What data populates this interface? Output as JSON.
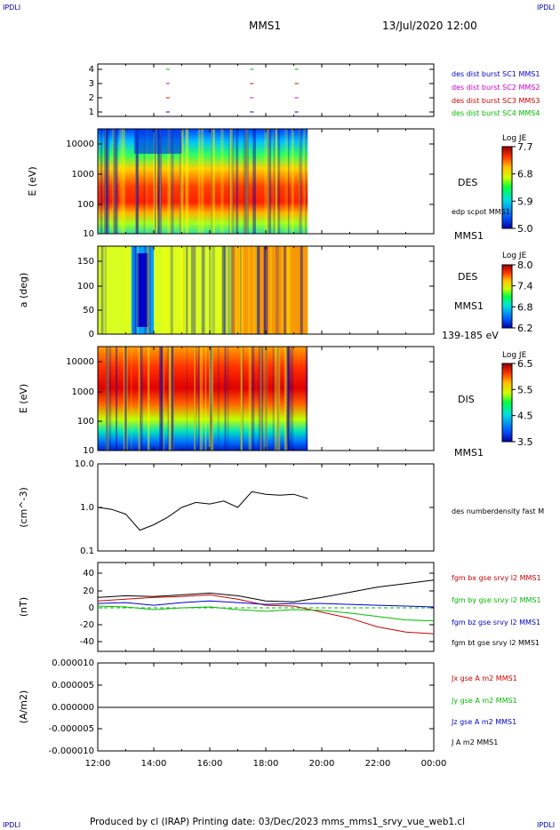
{
  "corner": {
    "tl": "IPDLI",
    "tr": "IPDLI",
    "bl": "IPDLI",
    "br": "IPDLI"
  },
  "header": {
    "spacecraft": "MMS1",
    "datetime": "13/Jul/2020 12:00"
  },
  "footer": {
    "text": "Produced by cl (IRAP)   Printing date: 03/Dec/2023   mms_mms1_srvy_vue_web1.cl"
  },
  "colors": {
    "c1": "#0000cc",
    "c2": "#cc00cc",
    "c3": "#cc0000",
    "c4": "#00bb00",
    "black": "#000000"
  },
  "x_axis": {
    "ticks": [
      "12:00",
      "14:00",
      "16:00",
      "18:00",
      "20:00",
      "22:00",
      "00:00"
    ]
  },
  "panel1": {
    "yticks": [
      "4",
      "3",
      "2",
      "1"
    ],
    "labels": [
      "des dist burst SC1 MMS1",
      "des dist burst SC2 MMS2",
      "des dist burst SC3 MMS3",
      "des dist burst SC4 MMS4"
    ]
  },
  "panel2": {
    "ylabel": "E (eV)",
    "yticks": [
      "10000",
      "1000",
      "100",
      "10"
    ],
    "name": "DES",
    "overlay": "edp scpot MMS1",
    "sc": "MMS1",
    "cb_title": "Log JE",
    "cb_ticks": [
      "7.7",
      "6.8",
      "5.9",
      "5.0"
    ]
  },
  "panel3": {
    "ylabel": "a (deg)",
    "yticks": [
      "150",
      "100",
      "50",
      "0"
    ],
    "name": "DES",
    "sc": "MMS1",
    "range": "139-185 eV",
    "cb_title": "Log JE",
    "cb_ticks": [
      "8.0",
      "7.4",
      "6.8",
      "6.2"
    ]
  },
  "panel4": {
    "ylabel": "E (eV)",
    "yticks": [
      "10000",
      "1000",
      "100",
      "10"
    ],
    "name": "DIS",
    "sc": "MMS1",
    "cb_title": "Log JE",
    "cb_ticks": [
      "6.5",
      "5.5",
      "4.5",
      "3.5"
    ]
  },
  "panel5": {
    "ylabel": "(cm^-3)",
    "yticks": [
      "10.0",
      "1.0",
      "0.1"
    ],
    "label": "des numberdensity fast M"
  },
  "panel6": {
    "ylabel": "(nT)",
    "yticks": [
      "40",
      "20",
      "0",
      "-20",
      "-40"
    ],
    "labels": [
      "fgm bx gse srvy l2 MMS1",
      "fgm by gse srvy l2 MMS1",
      "fgm bz gse srvy l2 MMS1",
      "fgm bt gse srvy l2 MMS1"
    ]
  },
  "panel7": {
    "ylabel": "(A/m2)",
    "yticks": [
      "0.000010",
      "0.000005",
      "0.000000",
      "-0.000005",
      "-0.000010"
    ],
    "labels": [
      "Jx gse A m2 MMS1",
      "Jy gse A m2 MMS1",
      "Jz gse A m2 MMS1",
      "J A m2 MMS1"
    ]
  },
  "chart_data": {
    "type": "line",
    "x_range_hours": [
      12,
      24
    ],
    "density": {
      "ylim": [
        0.1,
        10
      ],
      "x": [
        12.0,
        12.5,
        13.0,
        13.5,
        14.0,
        14.5,
        15.0,
        15.5,
        16.0,
        16.5,
        17.0,
        17.5,
        18.0,
        18.5,
        19.0,
        19.5
      ],
      "values": [
        1.0,
        0.9,
        0.7,
        0.3,
        0.4,
        0.6,
        1.0,
        1.3,
        1.2,
        1.4,
        1.0,
        2.3,
        2.0,
        1.9,
        2.0,
        1.6
      ]
    },
    "bfield": {
      "ylim": [
        -45,
        45
      ],
      "x": [
        12.0,
        13.0,
        14.0,
        15.0,
        16.0,
        17.0,
        18.0,
        19.0,
        20.0,
        21.0,
        22.0,
        23.0,
        24.0
      ],
      "series": [
        {
          "name": "fgm bx gse srvy l2 MMS1",
          "values": [
            8,
            10,
            12,
            13,
            15,
            10,
            3,
            2,
            -5,
            -12,
            -22,
            -28,
            -30
          ]
        },
        {
          "name": "fgm by gse srvy l2 MMS1",
          "values": [
            2,
            1,
            -2,
            0,
            1,
            -2,
            -4,
            -2,
            -3,
            -6,
            -10,
            -14,
            -15
          ]
        },
        {
          "name": "fgm bz gse srvy l2 MMS1",
          "values": [
            5,
            6,
            3,
            6,
            8,
            6,
            4,
            5,
            5,
            4,
            3,
            2,
            1
          ]
        },
        {
          "name": "fgm bt gse srvy l2 MMS1",
          "values": [
            12,
            14,
            13,
            15,
            17,
            14,
            8,
            7,
            12,
            18,
            24,
            28,
            32
          ]
        }
      ]
    },
    "current": {
      "ylim": [
        -1e-05,
        1e-05
      ],
      "x": [
        12.0,
        24.0
      ],
      "values": [
        0.0,
        0.0
      ]
    }
  }
}
